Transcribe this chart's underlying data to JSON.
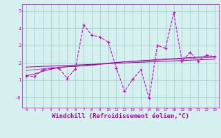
{
  "x": [
    0,
    1,
    2,
    3,
    4,
    5,
    6,
    7,
    8,
    9,
    10,
    11,
    12,
    13,
    14,
    15,
    16,
    17,
    18,
    19,
    20,
    21,
    22,
    23
  ],
  "y_main": [
    1.25,
    1.2,
    1.6,
    1.7,
    1.7,
    1.1,
    1.65,
    4.2,
    3.6,
    3.5,
    3.2,
    1.7,
    0.35,
    1.05,
    1.6,
    -0.05,
    3.0,
    2.85,
    4.9,
    2.1,
    2.6,
    2.1,
    2.45,
    2.35
  ],
  "y_trend1": [
    1.75,
    1.77,
    1.79,
    1.81,
    1.83,
    1.85,
    1.87,
    1.89,
    1.91,
    1.93,
    1.95,
    1.97,
    1.99,
    2.01,
    2.03,
    2.05,
    2.07,
    2.09,
    2.11,
    2.13,
    2.15,
    2.17,
    2.19,
    2.21
  ],
  "y_trend2": [
    1.55,
    1.6,
    1.65,
    1.7,
    1.75,
    1.78,
    1.8,
    1.82,
    1.85,
    1.9,
    1.95,
    2.0,
    2.05,
    2.08,
    2.1,
    2.12,
    2.15,
    2.18,
    2.2,
    2.22,
    2.25,
    2.28,
    2.3,
    2.32
  ],
  "y_trend3": [
    1.25,
    1.35,
    1.5,
    1.63,
    1.72,
    1.77,
    1.8,
    1.83,
    1.88,
    1.93,
    1.98,
    2.02,
    2.06,
    2.09,
    2.12,
    2.15,
    2.19,
    2.22,
    2.24,
    2.27,
    2.3,
    2.33,
    2.35,
    2.38
  ],
  "line_color": "#cc00cc",
  "trend_color1": "#990099",
  "trend_color2": "#bb44bb",
  "trend_color3": "#880088",
  "bg_color": "#d6f0f0",
  "grid_color": "#99cccc",
  "axis_color": "#cc00cc",
  "tick_color": "#aa00aa",
  "xlabel": "Windchill (Refroidissement éolien,°C)",
  "ylim": [
    -0.6,
    5.4
  ],
  "xlim": [
    -0.5,
    23.5
  ],
  "yticks": [
    0,
    1,
    2,
    3,
    4,
    5
  ],
  "ytick_labels": [
    "-0",
    "1",
    "2",
    "3",
    "4",
    "5"
  ],
  "xticks": [
    0,
    1,
    2,
    3,
    4,
    5,
    6,
    7,
    8,
    9,
    10,
    11,
    12,
    13,
    14,
    15,
    16,
    17,
    18,
    19,
    20,
    21,
    22,
    23
  ]
}
